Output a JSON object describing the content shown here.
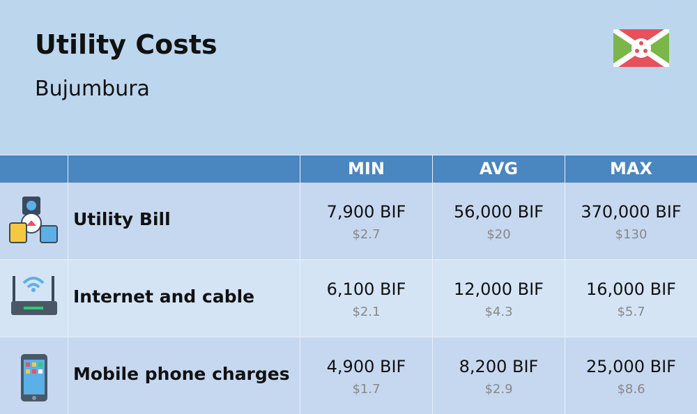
{
  "header": {
    "title": "Utility Costs",
    "subtitle": "Bujumbura"
  },
  "table": {
    "columns": [
      "MIN",
      "AVG",
      "MAX"
    ],
    "rows": [
      {
        "label": "Utility Bill",
        "cells": [
          {
            "local": "7,900 BIF",
            "usd": "$2.7"
          },
          {
            "local": "56,000 BIF",
            "usd": "$20"
          },
          {
            "local": "370,000 BIF",
            "usd": "$130"
          }
        ]
      },
      {
        "label": "Internet and cable",
        "cells": [
          {
            "local": "6,100 BIF",
            "usd": "$2.1"
          },
          {
            "local": "12,000 BIF",
            "usd": "$4.3"
          },
          {
            "local": "16,000 BIF",
            "usd": "$5.7"
          }
        ]
      },
      {
        "label": "Mobile phone charges",
        "cells": [
          {
            "local": "4,900 BIF",
            "usd": "$1.7"
          },
          {
            "local": "8,200 BIF",
            "usd": "$2.9"
          },
          {
            "local": "25,000 BIF",
            "usd": "$8.6"
          }
        ]
      }
    ]
  }
}
